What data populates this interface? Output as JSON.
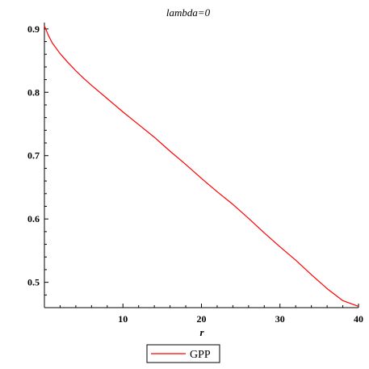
{
  "chart_data": {
    "type": "line",
    "title": "lambda=0",
    "xlabel": "r",
    "ylabel": "",
    "xlim": [
      0,
      40
    ],
    "ylim": [
      0.46,
      0.91
    ],
    "xticks": [
      10,
      20,
      30,
      40
    ],
    "yticks": [
      0.5,
      0.6,
      0.7,
      0.8,
      0.9
    ],
    "xtick_labels": [
      "10",
      "20",
      "30",
      "40"
    ],
    "ytick_labels": [
      "0.5",
      "0.6",
      "0.7",
      "0.8",
      "0.9"
    ],
    "grid": false,
    "legend_position": "bottom-center",
    "series": [
      {
        "name": "GPP",
        "color": "#ff0000",
        "x": [
          0,
          0.5,
          1,
          2,
          3,
          4,
          5,
          6,
          8,
          10,
          12,
          14,
          16,
          18,
          20,
          22,
          24,
          26,
          28,
          30,
          32,
          34,
          36,
          38,
          40
        ],
        "y": [
          0.905,
          0.89,
          0.878,
          0.861,
          0.847,
          0.834,
          0.822,
          0.811,
          0.79,
          0.769,
          0.749,
          0.729,
          0.707,
          0.686,
          0.664,
          0.643,
          0.623,
          0.601,
          0.578,
          0.556,
          0.535,
          0.512,
          0.49,
          0.471,
          0.462
        ]
      }
    ]
  }
}
